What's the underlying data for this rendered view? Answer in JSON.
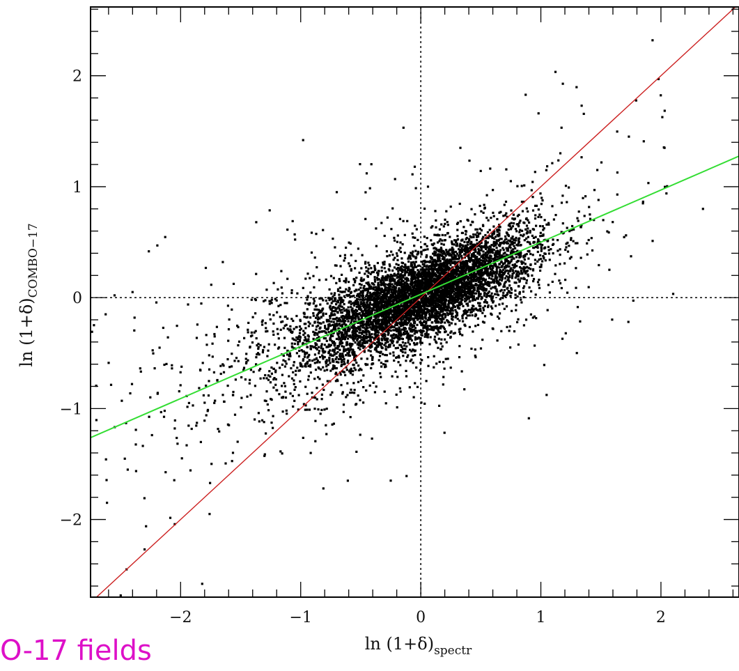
{
  "chart_data": {
    "type": "scatter",
    "title": "",
    "xlabel": {
      "main": "ln  (1+δ)",
      "sub": "spectr"
    },
    "ylabel": {
      "main": "ln  (1+δ)",
      "sub": "COMBO−17"
    },
    "xlim": [
      -2.75,
      2.65
    ],
    "ylim": [
      -2.7,
      2.62
    ],
    "x_ticks": [
      -2,
      -1,
      0,
      1,
      2
    ],
    "y_ticks": [
      -2,
      -1,
      0,
      1,
      2
    ],
    "x_tick_labels": [
      "−2",
      "−1",
      "0",
      "1",
      "2"
    ],
    "y_tick_labels": [
      "−2",
      "−1",
      "0",
      "1",
      "2"
    ],
    "grid": false,
    "reference_lines": {
      "x": 0,
      "y": 0,
      "style": "dotted"
    },
    "fit_lines": [
      {
        "slope": 1.0,
        "intercept": 0.0,
        "color": "#cc2020"
      },
      {
        "slope": 0.47,
        "intercept": 0.03,
        "color": "#33dd33"
      }
    ],
    "cloud": {
      "main": {
        "n": 5200,
        "center": [
          0.05,
          0.05
        ],
        "sd_major": 0.5,
        "sd_minor": 0.17,
        "angle_slope": 0.52
      },
      "broad": {
        "n": 1300,
        "center": [
          -0.5,
          -0.25
        ],
        "sd_major": 0.82,
        "sd_minor": 0.35,
        "angle_slope": 0.5
      },
      "scatter_tail": {
        "n": 180
      }
    },
    "outliers": [
      [
        -0.98,
        1.42
      ],
      [
        -0.45,
        1.12
      ],
      [
        0.33,
        1.35
      ],
      [
        0.75,
        1.05
      ],
      [
        1.34,
        1.73
      ],
      [
        1.93,
        2.32
      ],
      [
        2.03,
        1.35
      ],
      [
        1.98,
        1.97
      ],
      [
        1.47,
        1.15
      ],
      [
        1.85,
        0.85
      ],
      [
        -1.37,
        0.68
      ],
      [
        -1.05,
        0.57
      ],
      [
        -2.55,
        0.02
      ],
      [
        -2.4,
        0.05
      ],
      [
        1.3,
        -0.5
      ],
      [
        1.48,
        0.88
      ],
      [
        2.35,
        0.8
      ],
      [
        0.6,
        0.97
      ],
      [
        -0.25,
        -1.65
      ],
      [
        -1.82,
        -2.58
      ],
      [
        -2.45,
        -2.45
      ],
      [
        -2.3,
        -2.27
      ],
      [
        0.06,
        1.0
      ],
      [
        0.25,
        0.82
      ],
      [
        -0.05,
        1.18
      ]
    ]
  },
  "caption": {
    "text": "O-17 fields",
    "color": "#dd10c8"
  }
}
